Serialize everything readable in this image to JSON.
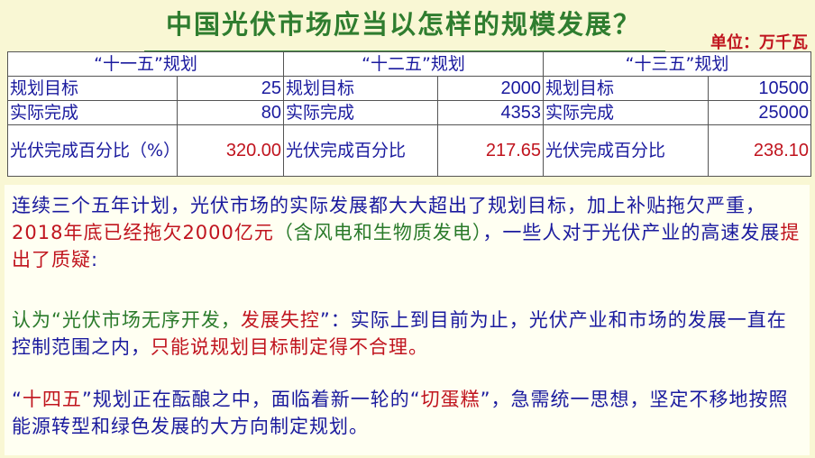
{
  "title": "中国光伏市场应当以怎样的规模发展？",
  "unit": "单位：万千瓦",
  "colors": {
    "title": "#2f7d2f",
    "blue": "#1a1a9e",
    "red": "#c0141e",
    "green": "#2a7a2a",
    "background": "#f9f7d4"
  },
  "table": {
    "plans": [
      {
        "header": "“十一五”规划",
        "target_label": "规划目标",
        "target": "25",
        "actual_label": "实际完成",
        "actual": "80",
        "pct_label": "光伏完成百分比（%）",
        "pct": "320.00"
      },
      {
        "header": "“十二五”规划",
        "target_label": "规划目标",
        "target": "2000",
        "actual_label": "实际完成",
        "actual": "4353",
        "pct_label": "光伏完成百分比",
        "pct": "217.65"
      },
      {
        "header": "“十三五”规划",
        "target_label": "规划目标",
        "target": "10500",
        "actual_label": "实际完成",
        "actual": "25000",
        "pct_label": "光伏完成百分比",
        "pct": "238.10"
      }
    ]
  },
  "paragraphs": [
    [
      {
        "text": "连续三个五年计划，光伏市场的实际发展都大大超出了规划目标，加上补贴拖欠严重，",
        "color": "blue"
      },
      {
        "text": "2018年底已经拖欠2000亿元",
        "color": "red"
      },
      {
        "text": "（含风电和生物质发电）",
        "color": "green"
      },
      {
        "text": "，一些人对于光伏产业的高速发展",
        "color": "blue"
      },
      {
        "text": "提出了质疑",
        "color": "red"
      },
      {
        "text": ":",
        "color": "blue"
      }
    ],
    [
      {
        "text": "认为“光伏市场无序开发，",
        "color": "green"
      },
      {
        "text": "发展失控",
        "color": "red"
      },
      {
        "text": "”：实际上到目前为止，光伏产业和市场的发展一直在控制范围之内，",
        "color": "blue"
      },
      {
        "text": "只能说规划目标制定得不合理。",
        "color": "red"
      }
    ],
    [
      {
        "text": "“",
        "color": "blue"
      },
      {
        "text": "十四五",
        "color": "red"
      },
      {
        "text": "”规划正在酝酿之中，面临着新一轮的“",
        "color": "blue"
      },
      {
        "text": "切蛋糕",
        "color": "red"
      },
      {
        "text": "”，急需统一思想，坚定不移地按照能源转型和绿色发展的大方向制定规划。",
        "color": "blue"
      }
    ]
  ]
}
